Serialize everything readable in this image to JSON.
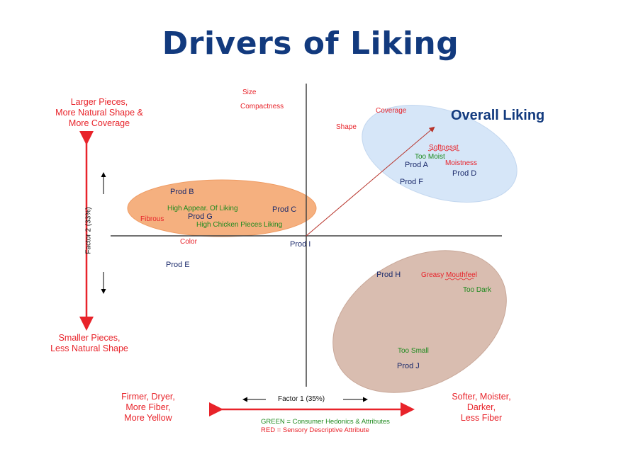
{
  "title": "Drivers of Liking",
  "axes": {
    "y_label": "Factor 2 (33%)",
    "x_label": "Factor 1 (35%)",
    "top": "Larger Pieces,\nMore Natural Shape &\nMore Coverage",
    "bottom": "Smaller Pieces,\nLess Natural Shape",
    "left": "Firmer, Dryer,\nMore Fiber,\nMore Yellow",
    "right": "Softer, Moister,\nDarker,\nLess Fiber"
  },
  "overall_liking": "Overall Liking",
  "products": {
    "a": "Prod A",
    "b": "Prod B",
    "c": "Prod C",
    "d": "Prod D",
    "e": "Prod E",
    "f": "Prod F",
    "g": "Prod G",
    "h": "Prod H",
    "i": "Prod I",
    "j": "Prod J"
  },
  "sensory": {
    "size": "Size",
    "compactness": "Compactness",
    "coverage": "Coverage",
    "shape": "Shape",
    "softness": "Softnesst",
    "moistness": "Moistness",
    "fibrous": "Fibrous",
    "color": "Color",
    "greasy": "Greasy Mouthfeel"
  },
  "hedonic": {
    "too_moist": "Too Moist",
    "high_appear": "High  Appear. Of Liking",
    "high_chicken": "High  Chicken Pieces Liking",
    "too_dark": "Too Dark",
    "too_small": "Too Small"
  },
  "legend": {
    "green": "GREEN  = Consumer Hedonics & Attributes",
    "red": "RED  = Sensory Descriptive Attribute"
  },
  "colors": {
    "title": "#123a7e",
    "red": "#e8232a",
    "green": "#1e8a1e",
    "orange_group": "#f5b07f",
    "blue_group": "#d6e6f8",
    "brown_group": "#d9bdb0"
  }
}
